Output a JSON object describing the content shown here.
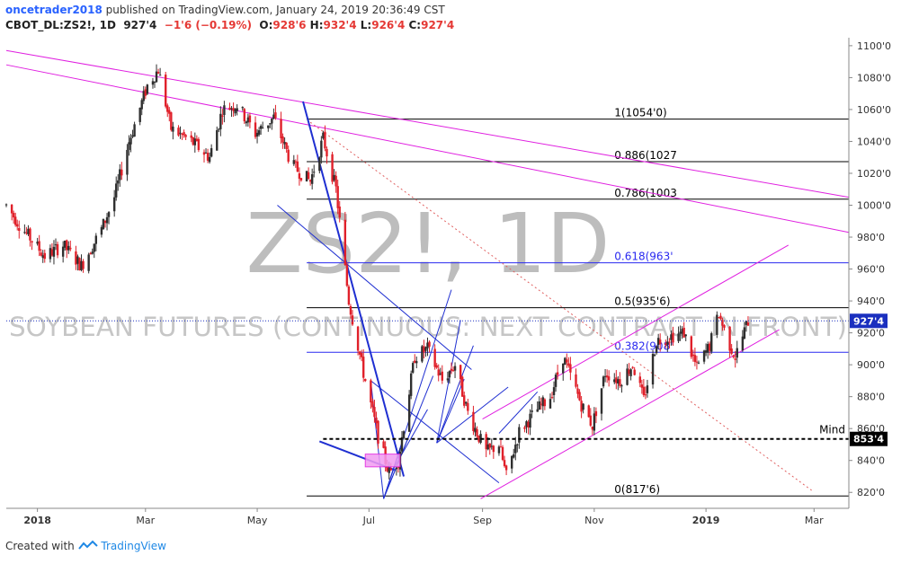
{
  "header": {
    "user": "oncetrader2018",
    "published": "published on TradingView.com, January 24, 2019 20:36:49 CST",
    "symbol": "CBOT_DL:ZS2!, 1D",
    "last": "927'4",
    "change": "−1'6 (−0.19%)",
    "o_label": "O:",
    "o": "928'6",
    "h_label": "H:",
    "h": "932'4",
    "l_label": "L:",
    "l": "926'4",
    "c_label": "C:",
    "c": "927'4"
  },
  "watermark": {
    "symbol": "ZS2!, 1D",
    "description": "SOYBEAN FUTURES (CONTINUOUS: NEXT CONTRACT IN FRONT)"
  },
  "footer": {
    "created_with": "Created with",
    "brand": "TradingView"
  },
  "colors": {
    "up": "#2f2f2f",
    "down": "#e0202a",
    "blue": "#1f2fd1",
    "magenta": "#e020e0",
    "fib_black": "#000000",
    "fib_blue": "#2a2af0",
    "price_tag": "#1a2fbf",
    "mind_tag": "#000000",
    "dotted_red": "#e06060"
  },
  "chart_data": {
    "type": "candlestick",
    "x_type": "date",
    "x_range": [
      "2017-12-15",
      "2019-03-20"
    ],
    "ylim": [
      810,
      1105
    ],
    "y_ticks": [
      "820'0",
      "840'0",
      "860'0",
      "880'0",
      "900'0",
      "920'0",
      "940'0",
      "960'0",
      "980'0",
      "1000'0",
      "1020'0",
      "1040'0",
      "1060'0",
      "1080'0",
      "1100'0"
    ],
    "y_tick_values": [
      820,
      840,
      860,
      880,
      900,
      920,
      940,
      960,
      980,
      1000,
      1020,
      1040,
      1060,
      1080,
      1100
    ],
    "x_ticks": [
      "2018",
      "Mar",
      "May",
      "Jul",
      "Sep",
      "Nov",
      "2019",
      "Mar"
    ],
    "x_tick_dates": [
      "2018-01-01",
      "2018-03-01",
      "2018-05-01",
      "2018-07-01",
      "2018-09-01",
      "2018-11-01",
      "2019-01-01",
      "2019-03-01"
    ],
    "price_anchors": [
      [
        "2017-12-15",
        1000
      ],
      [
        "2017-12-22",
        988
      ],
      [
        "2018-01-05",
        968
      ],
      [
        "2018-01-15",
        975
      ],
      [
        "2018-01-25",
        962
      ],
      [
        "2018-02-05",
        985
      ],
      [
        "2018-02-12",
        1005
      ],
      [
        "2018-02-20",
        1040
      ],
      [
        "2018-03-02",
        1075
      ],
      [
        "2018-03-08",
        1085
      ],
      [
        "2018-03-15",
        1048
      ],
      [
        "2018-03-26",
        1040
      ],
      [
        "2018-04-05",
        1030
      ],
      [
        "2018-04-12",
        1060
      ],
      [
        "2018-04-20",
        1063
      ],
      [
        "2018-04-30",
        1045
      ],
      [
        "2018-05-10",
        1055
      ],
      [
        "2018-05-20",
        1025
      ],
      [
        "2018-05-30",
        1015
      ],
      [
        "2018-06-06",
        1042
      ],
      [
        "2018-06-13",
        1010
      ],
      [
        "2018-06-20",
        940
      ],
      [
        "2018-06-28",
        895
      ],
      [
        "2018-07-06",
        855
      ],
      [
        "2018-07-12",
        832
      ],
      [
        "2018-07-17",
        840
      ],
      [
        "2018-07-26",
        905
      ],
      [
        "2018-08-02",
        910
      ],
      [
        "2018-08-10",
        890
      ],
      [
        "2018-08-17",
        900
      ],
      [
        "2018-08-24",
        870
      ],
      [
        "2018-09-03",
        845
      ],
      [
        "2018-09-10",
        850
      ],
      [
        "2018-09-14",
        830
      ],
      [
        "2018-09-21",
        858
      ],
      [
        "2018-10-01",
        872
      ],
      [
        "2018-10-08",
        880
      ],
      [
        "2018-10-15",
        905
      ],
      [
        "2018-10-25",
        875
      ],
      [
        "2018-10-31",
        862
      ],
      [
        "2018-11-07",
        895
      ],
      [
        "2018-11-15",
        890
      ],
      [
        "2018-11-22",
        900
      ],
      [
        "2018-11-28",
        878
      ],
      [
        "2018-12-05",
        915
      ],
      [
        "2018-12-13",
        918
      ],
      [
        "2018-12-20",
        920
      ],
      [
        "2018-12-27",
        898
      ],
      [
        "2019-01-03",
        912
      ],
      [
        "2019-01-08",
        932
      ],
      [
        "2019-01-13",
        915
      ],
      [
        "2019-01-17",
        905
      ],
      [
        "2019-01-24",
        927.5
      ]
    ],
    "last_price_label": "927'4",
    "last_price": 927.5,
    "mind_label": "Mind",
    "mind_price_label": "853'4",
    "mind_price": 853.5,
    "fib_levels": [
      {
        "label": "1(1054'0)",
        "value": 1054.0,
        "color": "#000000"
      },
      {
        "label": "0.886(1027",
        "value": 1027.3,
        "color": "#000000"
      },
      {
        "label": "0.786(1003",
        "value": 1003.8,
        "color": "#000000"
      },
      {
        "label": "0.618(963'",
        "value": 963.9,
        "color": "#2a2af0"
      },
      {
        "label": "0.5(935'6)",
        "value": 935.75,
        "color": "#000000"
      },
      {
        "label": "0.382(908'",
        "value": 907.8,
        "color": "#2a2af0"
      },
      {
        "label": "0(817'6)",
        "value": 817.75,
        "color": "#000000"
      }
    ],
    "fib_start_date": "2018-05-28",
    "fib_label_date": "2018-11-12",
    "grid": false,
    "legend": "none"
  }
}
